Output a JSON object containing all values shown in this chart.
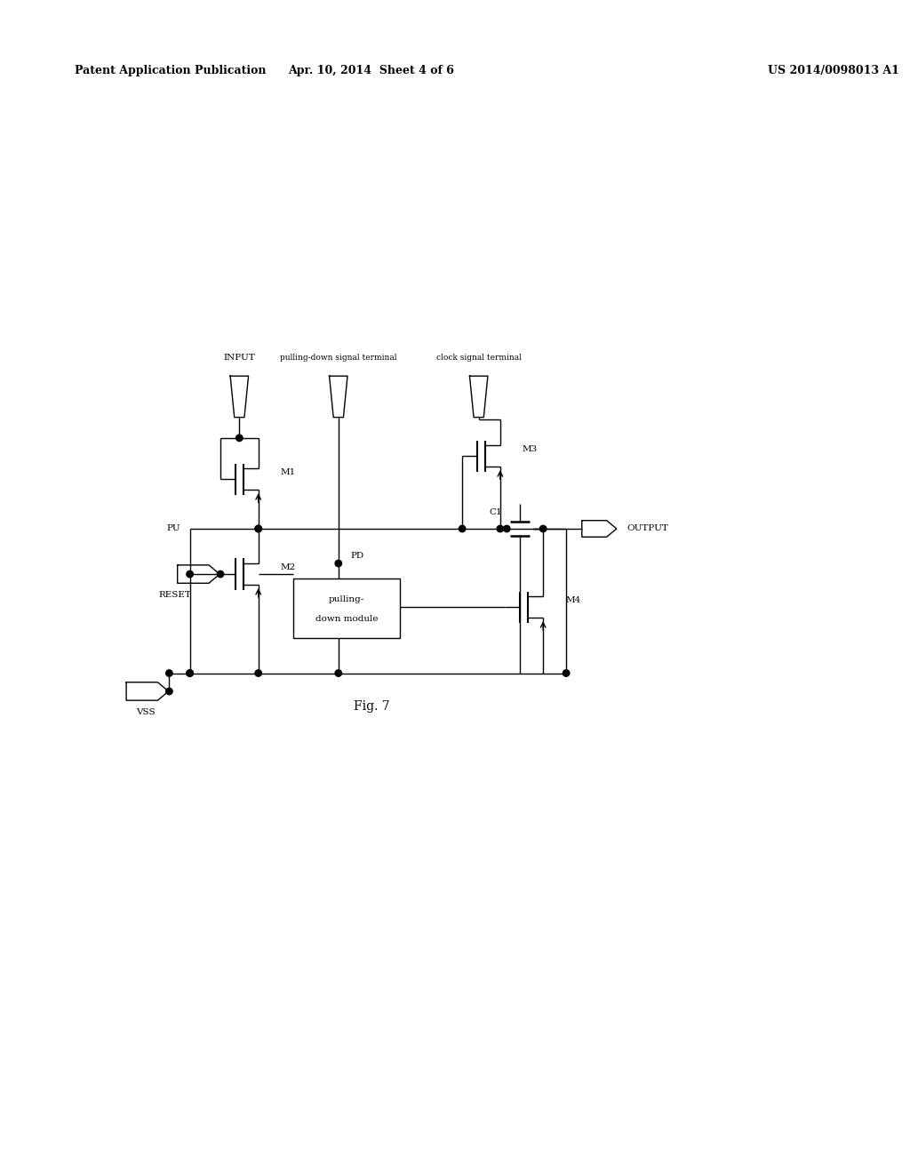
{
  "header_left": "Patent Application Publication",
  "header_center": "Apr. 10, 2014  Sheet 4 of 6",
  "header_right": "US 2014/0098013 A1",
  "bg_color": "#ffffff",
  "line_color": "#000000",
  "fig_label": "Fig. 7"
}
